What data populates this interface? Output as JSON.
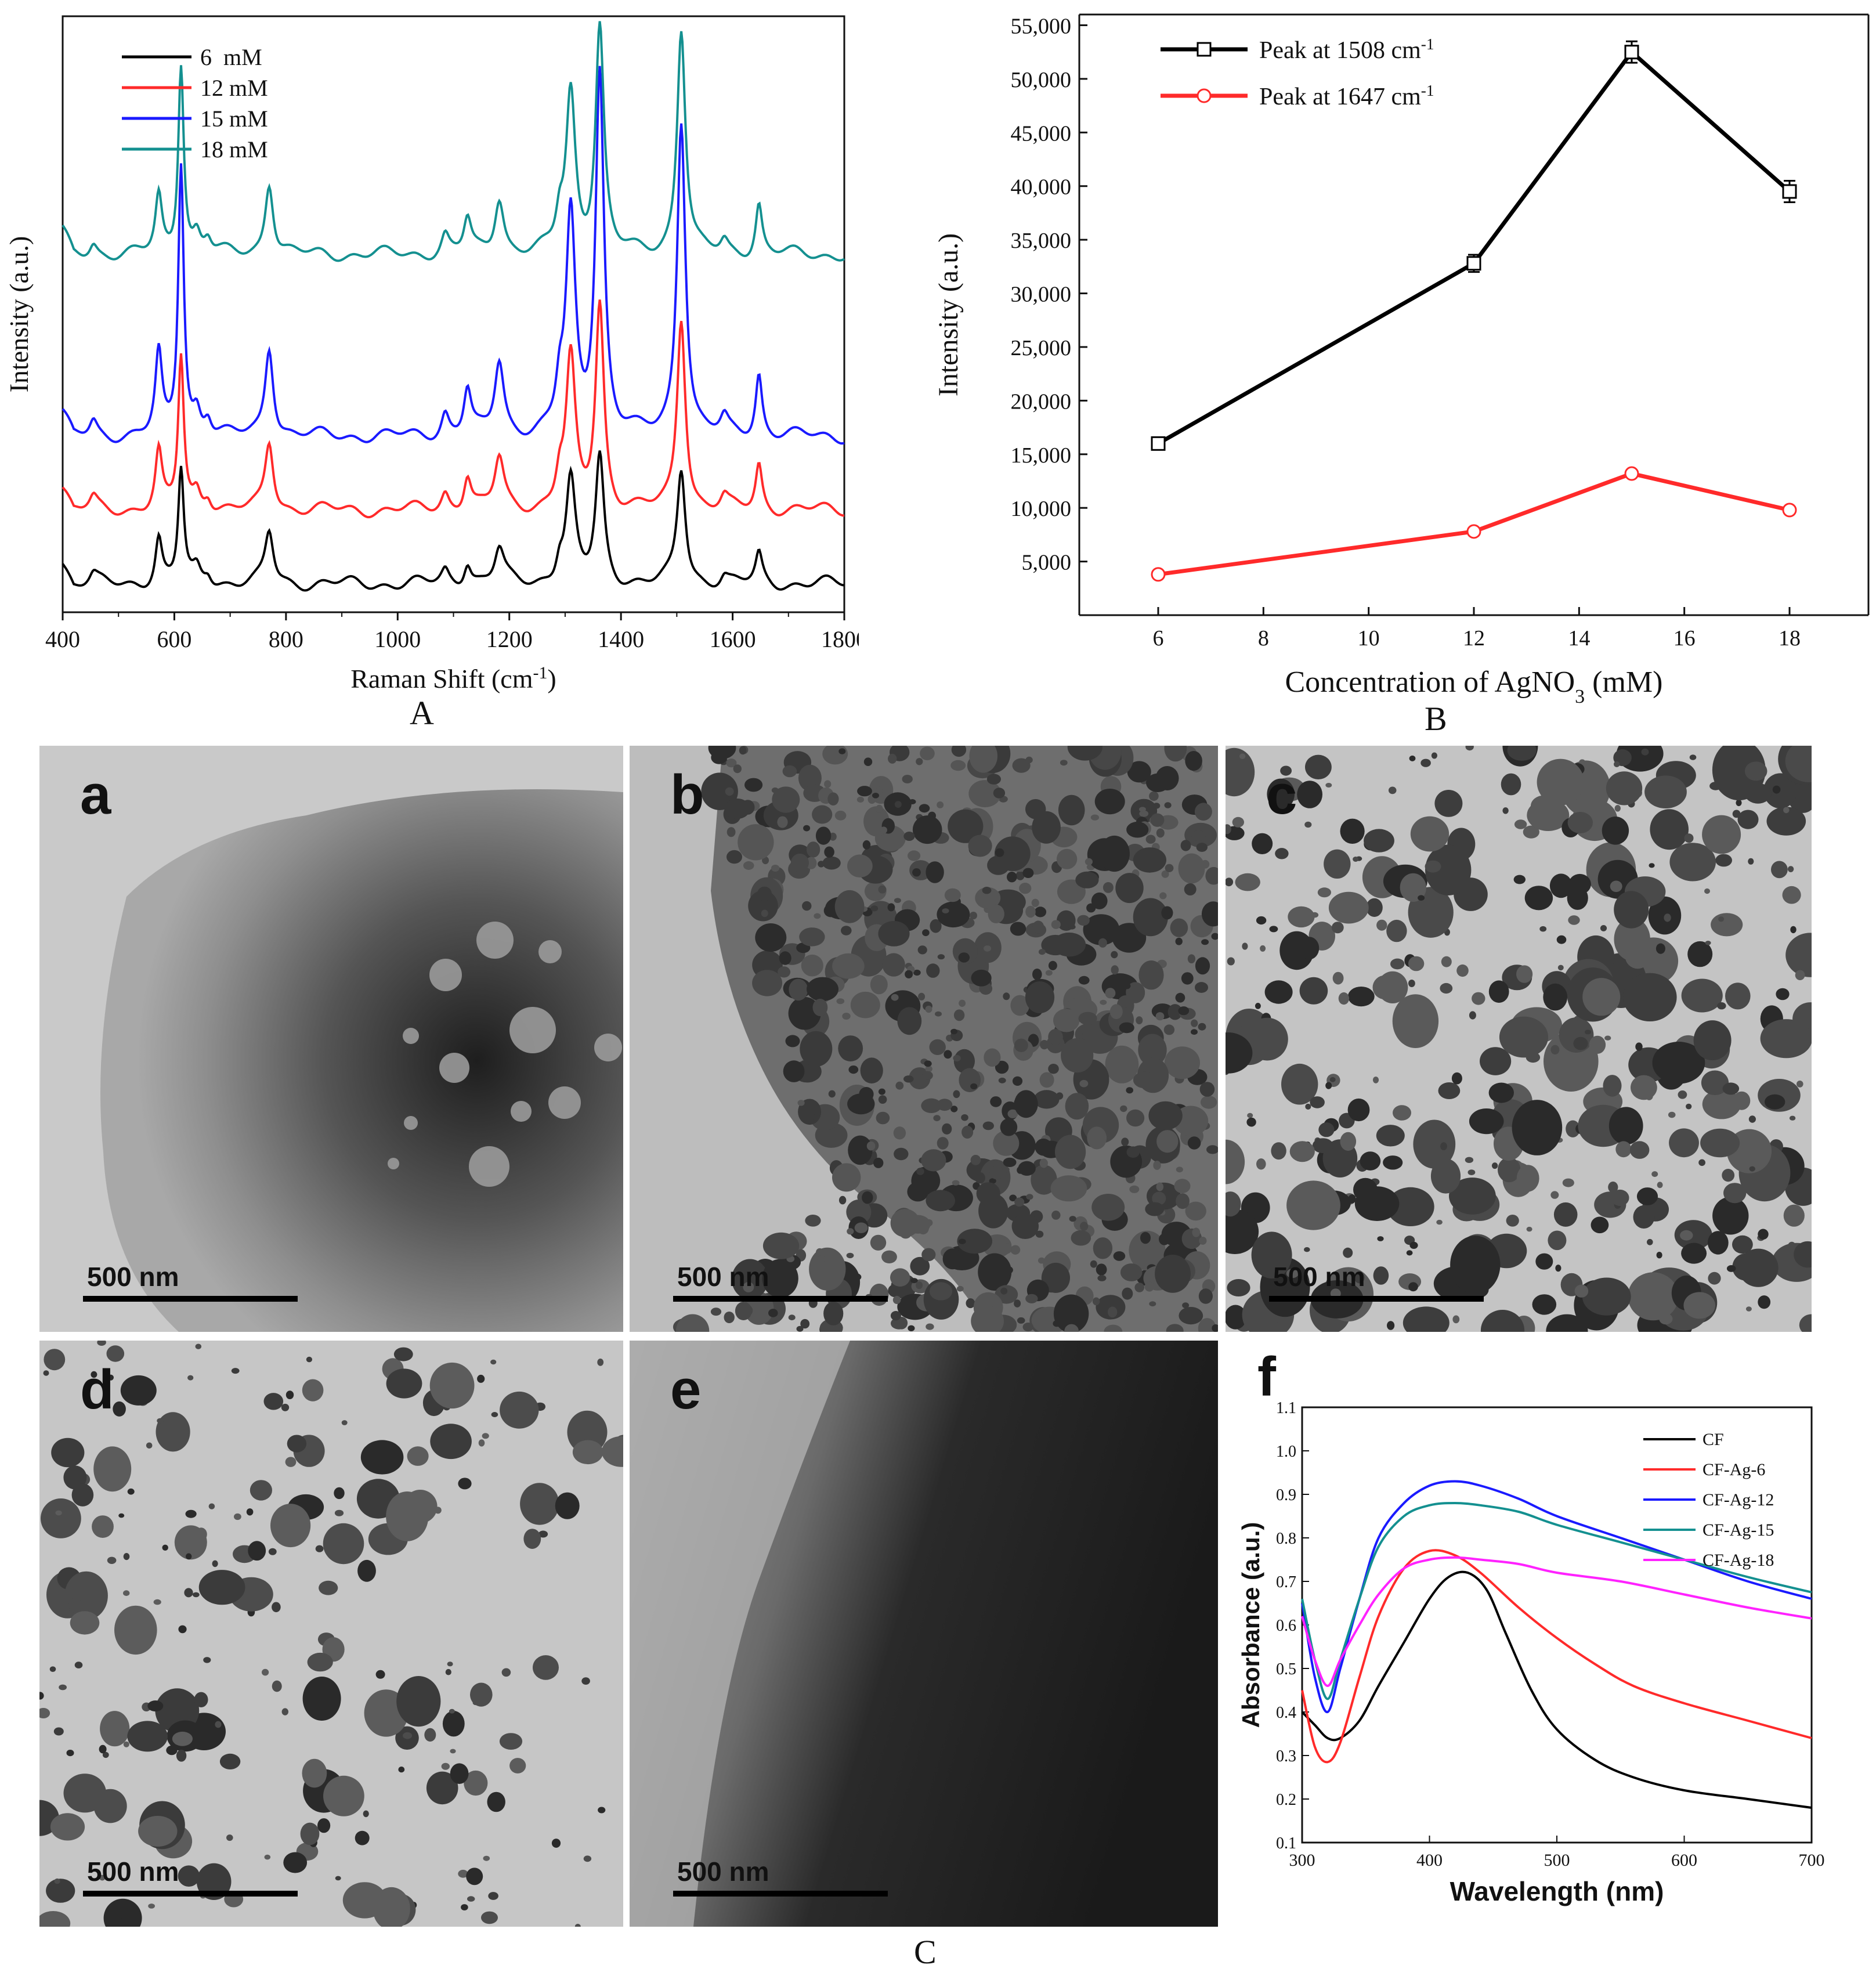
{
  "chart_data": [
    {
      "panel": "A",
      "type": "line",
      "xlabel": "Raman Shift (cm-1)",
      "xlabel_sup": "-1",
      "ylabel": "Intensity (a.u.)",
      "xlim": [
        400,
        1800
      ],
      "xticks": [
        400,
        600,
        800,
        1000,
        1200,
        1400,
        1600,
        1800
      ],
      "y_ticks_shown": false,
      "legend_position": "top-left",
      "peaks_cm1": [
        572,
        612,
        770,
        1125,
        1182,
        1310,
        1362,
        1508,
        1647
      ],
      "series": [
        {
          "name": "6  mM",
          "color": "#000000",
          "baseline": 0.05,
          "peak_heights": [
            0.08,
            0.2,
            0.09,
            0.04,
            0.06,
            0.18,
            0.22,
            0.2,
            0.05
          ]
        },
        {
          "name": "12 mM",
          "color": "#ff2a2a",
          "baseline": 0.18,
          "peak_heights": [
            0.1,
            0.27,
            0.12,
            0.06,
            0.09,
            0.26,
            0.36,
            0.34,
            0.08
          ]
        },
        {
          "name": "15 mM",
          "color": "#1a1aff",
          "baseline": 0.31,
          "peak_heights": [
            0.14,
            0.48,
            0.16,
            0.08,
            0.13,
            0.38,
            0.64,
            0.56,
            0.11
          ]
        },
        {
          "name": "18 mM",
          "color": "#149090",
          "baseline": 0.63,
          "peak_heights": [
            0.1,
            0.34,
            0.13,
            0.06,
            0.1,
            0.28,
            0.4,
            0.4,
            0.09
          ]
        }
      ]
    },
    {
      "panel": "B",
      "type": "line",
      "xlabel": "Concentration of AgNO3 (mM)",
      "ylabel": "Intensity (a.u.)",
      "xlim": [
        4.5,
        19.5
      ],
      "ylim": [
        0,
        56000
      ],
      "xticks": [
        6,
        8,
        10,
        12,
        14,
        16,
        18
      ],
      "yticks": [
        5000,
        10000,
        15000,
        20000,
        25000,
        30000,
        35000,
        40000,
        45000,
        50000,
        55000
      ],
      "legend_position": "top-left",
      "x": [
        6,
        12,
        15,
        18
      ],
      "series": [
        {
          "name": "Peak at 1508 cm-1",
          "color": "#000000",
          "marker": "square",
          "values": [
            16000,
            32800,
            52500,
            39500
          ],
          "errors": [
            400,
            800,
            1000,
            1000
          ]
        },
        {
          "name": "Peak at 1647 cm-1",
          "color": "#ff2a2a",
          "marker": "circle",
          "values": [
            3800,
            7800,
            13200,
            9800
          ],
          "errors": [
            150,
            200,
            300,
            200
          ]
        }
      ]
    },
    {
      "panel": "f",
      "type": "line",
      "xlabel": "Wavelength (nm)",
      "ylabel": "Absorbance (a.u.)",
      "xlim": [
        300,
        700
      ],
      "ylim": [
        0.1,
        1.1
      ],
      "xticks": [
        300,
        400,
        500,
        600,
        700
      ],
      "yticks": [
        0.1,
        0.2,
        0.3,
        0.4,
        0.5,
        0.6,
        0.7,
        0.8,
        0.9,
        1.0,
        1.1
      ],
      "legend_position": "top-right",
      "series": [
        {
          "name": "CF",
          "color": "#000000",
          "x": [
            300,
            310,
            320,
            330,
            345,
            360,
            380,
            400,
            415,
            430,
            445,
            460,
            480,
            500,
            530,
            560,
            600,
            650,
            700
          ],
          "y": [
            0.4,
            0.37,
            0.34,
            0.34,
            0.38,
            0.46,
            0.56,
            0.66,
            0.71,
            0.72,
            0.68,
            0.58,
            0.45,
            0.36,
            0.29,
            0.25,
            0.22,
            0.2,
            0.18
          ]
        },
        {
          "name": "CF-Ag-6",
          "color": "#ff2a2a",
          "x": [
            300,
            310,
            320,
            330,
            345,
            360,
            380,
            400,
            420,
            440,
            470,
            500,
            530,
            560,
            600,
            650,
            700
          ],
          "y": [
            0.45,
            0.32,
            0.285,
            0.33,
            0.48,
            0.62,
            0.73,
            0.77,
            0.76,
            0.72,
            0.64,
            0.57,
            0.51,
            0.46,
            0.42,
            0.38,
            0.34
          ]
        },
        {
          "name": "CF-Ag-12",
          "color": "#1a1aff",
          "x": [
            300,
            310,
            320,
            330,
            345,
            360,
            380,
            400,
            420,
            440,
            470,
            500,
            550,
            600,
            650,
            700
          ],
          "y": [
            0.65,
            0.48,
            0.4,
            0.5,
            0.66,
            0.8,
            0.88,
            0.92,
            0.93,
            0.92,
            0.89,
            0.85,
            0.8,
            0.75,
            0.7,
            0.66
          ]
        },
        {
          "name": "CF-Ag-15",
          "color": "#149090",
          "x": [
            300,
            310,
            320,
            330,
            345,
            360,
            380,
            400,
            420,
            440,
            470,
            500,
            550,
            600,
            650,
            700
          ],
          "y": [
            0.66,
            0.52,
            0.43,
            0.52,
            0.66,
            0.78,
            0.85,
            0.875,
            0.88,
            0.875,
            0.86,
            0.83,
            0.79,
            0.75,
            0.71,
            0.675
          ]
        },
        {
          "name": "CF-Ag-18",
          "color": "#ff22ff",
          "x": [
            300,
            310,
            320,
            330,
            345,
            360,
            380,
            400,
            420,
            440,
            470,
            500,
            550,
            600,
            650,
            700
          ],
          "y": [
            0.62,
            0.52,
            0.46,
            0.52,
            0.6,
            0.67,
            0.73,
            0.75,
            0.755,
            0.75,
            0.74,
            0.72,
            0.7,
            0.67,
            0.64,
            0.615
          ]
        }
      ]
    }
  ],
  "panel_labels": {
    "A": "A",
    "B": "B",
    "C": "C"
  },
  "tem_panels": [
    {
      "letter": "a",
      "scale": "500 nm"
    },
    {
      "letter": "b",
      "scale": "500 nm"
    },
    {
      "letter": "c",
      "scale": "500 nm"
    },
    {
      "letter": "d",
      "scale": "500 nm"
    },
    {
      "letter": "e",
      "scale": "500 nm"
    }
  ],
  "f_letter": "f"
}
